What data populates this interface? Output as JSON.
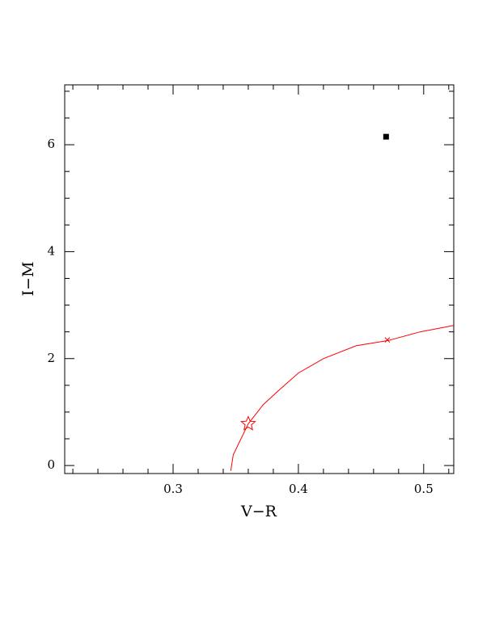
{
  "chart_data": {
    "type": "scatter",
    "xlabel": "V−R",
    "ylabel": "I−M",
    "xlim": [
      0.2135,
      0.524
    ],
    "ylim": [
      -0.15,
      7.12
    ],
    "xticks": [
      0.3,
      0.4,
      0.5
    ],
    "yticks": [
      0,
      2,
      4,
      6
    ],
    "xminorticks": [
      0.22,
      0.24,
      0.26,
      0.28,
      0.32,
      0.34,
      0.36,
      0.38,
      0.42,
      0.44,
      0.46,
      0.48,
      0.52
    ],
    "yminorticks": [
      0.5,
      1,
      1.5,
      2.5,
      3,
      3.5,
      4.5,
      5,
      5.5,
      6.5,
      7
    ],
    "series": [
      {
        "marker": "line",
        "color": "#ff0000",
        "x": [
          0.346,
          0.348,
          0.36,
          0.372,
          0.385,
          0.4,
          0.42,
          0.446,
          0.472,
          0.497,
          0.524
        ],
        "values": [
          -0.1,
          0.2,
          0.78,
          1.14,
          1.42,
          1.73,
          2.0,
          2.24,
          2.34,
          2.5,
          2.62
        ]
      },
      {
        "marker": "star",
        "color": "#ff0000",
        "x": [
          0.36
        ],
        "values": [
          0.78
        ]
      },
      {
        "marker": "cross",
        "color": "#ff0000",
        "x": [
          0.471
        ],
        "values": [
          2.35
        ]
      },
      {
        "marker": "square",
        "color": "#000000",
        "x": [
          0.47
        ],
        "values": [
          6.15
        ]
      }
    ]
  }
}
